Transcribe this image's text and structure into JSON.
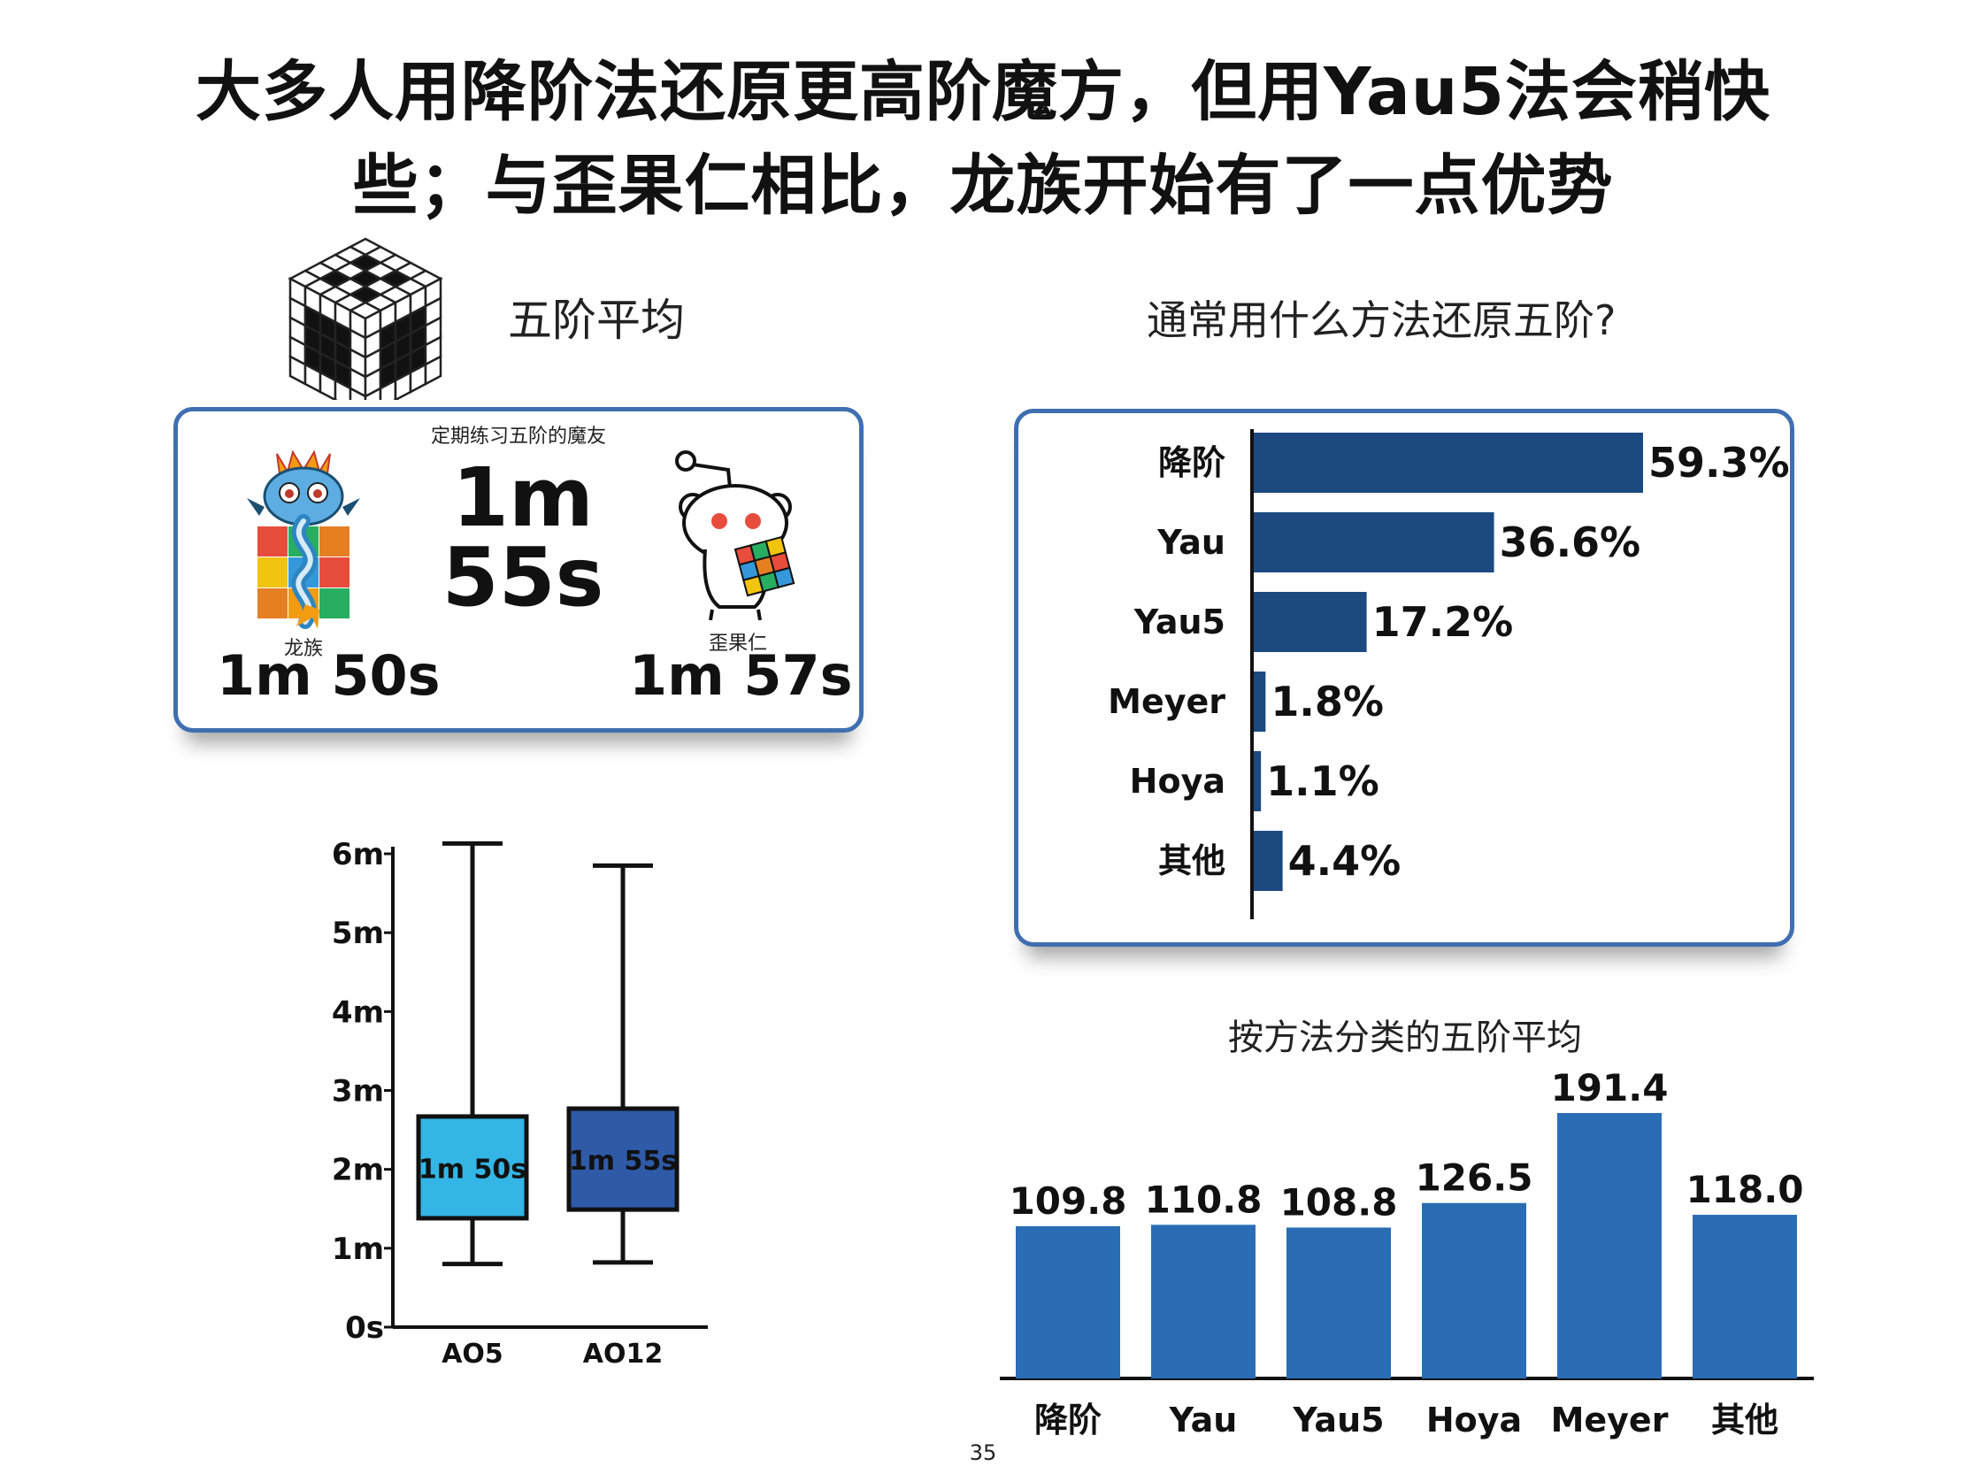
{
  "title": {
    "line1": "大多人用降阶法还原更高阶魔方，但用Yau5法会稍快",
    "line2": "些；与歪果仁相比，龙族开始有了一点优势"
  },
  "left": {
    "section_title": "五阶平均",
    "panel": {
      "header": "定期练习五阶的魔友",
      "center_time_line1": "1m",
      "center_time_line2": "55s",
      "dragon_label": "龙族",
      "dragon_time": "1m 50s",
      "foreigner_label": "歪果仁",
      "foreigner_time": "1m 57s"
    }
  },
  "right": {
    "section_title": "通常用什么方法还原五阶?",
    "bottom_title": "按方法分类的五阶平均"
  },
  "chart_data": [
    {
      "type": "boxplot",
      "categories": [
        "AO5",
        "AO12"
      ],
      "y_ticks": [
        "0s",
        "1m",
        "2m",
        "3m",
        "4m",
        "5m",
        "6m"
      ],
      "ylim_minutes": [
        0,
        6
      ],
      "boxes": [
        {
          "name": "AO5",
          "min": 0.8,
          "q1": 1.38,
          "q3": 2.67,
          "max": 6.13,
          "label": "1m 50s",
          "color": "#33b5e5"
        },
        {
          "name": "AO12",
          "min": 0.82,
          "q1": 1.49,
          "q3": 2.77,
          "max": 5.85,
          "label": "1m 55s",
          "color": "#2e5aa8"
        }
      ]
    },
    {
      "type": "bar",
      "orientation": "horizontal",
      "categories": [
        "降阶",
        "Yau",
        "Yau5",
        "Meyer",
        "Hoya",
        "其他"
      ],
      "values": [
        59.3,
        36.6,
        17.2,
        1.8,
        1.1,
        4.4
      ],
      "labels": [
        "59.3%",
        "36.6%",
        "17.2%",
        "1.8%",
        "1.1%",
        "4.4%"
      ],
      "color": "#1c4a80",
      "xlim": [
        0,
        59.3
      ]
    },
    {
      "type": "bar",
      "orientation": "vertical",
      "categories": [
        "降阶",
        "Yau",
        "Yau5",
        "Hoya",
        "Meyer",
        "其他"
      ],
      "values": [
        109.8,
        110.8,
        108.8,
        126.5,
        191.4,
        118.0
      ],
      "labels": [
        "109.8",
        "110.8",
        "108.8",
        "126.5",
        "191.4",
        "118.0"
      ],
      "color": "#2a6db5",
      "ylim": [
        0,
        191.4
      ]
    }
  ],
  "page_number": "35"
}
